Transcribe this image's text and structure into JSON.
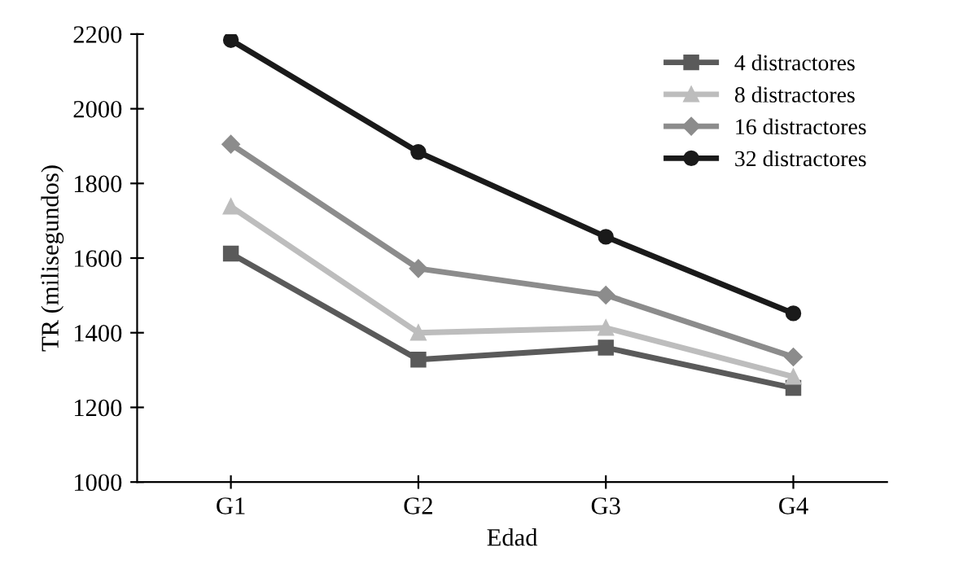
{
  "chart_data": {
    "type": "line",
    "xlabel": "Edad",
    "ylabel": "TR (milisegundos)",
    "categories": [
      "G1",
      "G2",
      "G3",
      "G4"
    ],
    "series": [
      {
        "name": "4 distractores",
        "color": "#5a5a5a",
        "marker": "square",
        "values": [
          1612,
          1328,
          1360,
          1252
        ]
      },
      {
        "name": "8 distractores",
        "color": "#bdbdbd",
        "marker": "triangle",
        "values": [
          1738,
          1400,
          1413,
          1282
        ]
      },
      {
        "name": "16 distractores",
        "color": "#8c8c8c",
        "marker": "diamond",
        "values": [
          1905,
          1572,
          1501,
          1335
        ]
      },
      {
        "name": "32 distractores",
        "color": "#1a1a1a",
        "marker": "circle",
        "values": [
          2184,
          1884,
          1657,
          1452
        ]
      }
    ],
    "ylim": [
      1000,
      2200
    ],
    "yticks": [
      1000,
      1200,
      1400,
      1600,
      1800,
      2000,
      2200
    ],
    "grid": false,
    "legend": "top right",
    "line_style": "solid"
  }
}
